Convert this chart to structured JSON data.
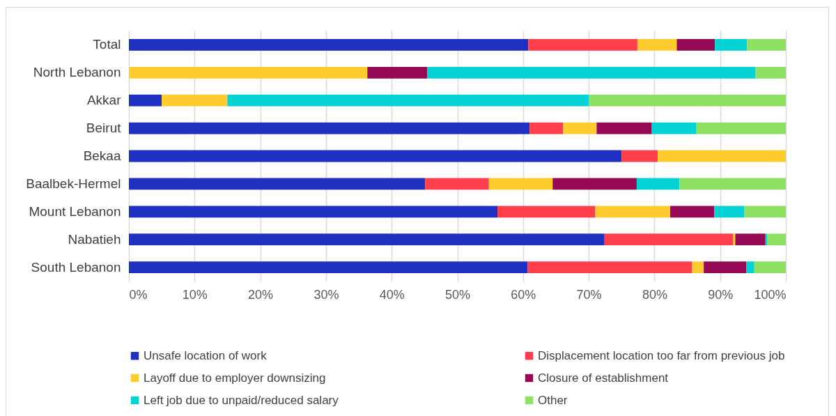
{
  "chart_data": {
    "type": "bar",
    "orientation": "horizontal",
    "stacked": true,
    "categories": [
      "Total",
      "North Lebanon",
      "Akkar",
      "Beirut",
      "Bekaa",
      "Baalbek-Hermel",
      "Mount Lebanon",
      "Nabatieh",
      "South Lebanon"
    ],
    "series": [
      {
        "name": "Unsafe location of work",
        "color": "#1f2fbf",
        "values": [
          60.8,
          0,
          5,
          61.0,
          75,
          45.1,
          56.1,
          72.4,
          60.7
        ]
      },
      {
        "name": "Displacement location too far from previous job",
        "color": "#ff3e4d",
        "values": [
          16.6,
          0,
          0,
          5.1,
          5.5,
          9.7,
          14.9,
          19.6,
          25.0
        ]
      },
      {
        "name": "Layoff due to employer downsizing",
        "color": "#ffcc2f",
        "values": [
          6.0,
          36.3,
          10,
          5.1,
          19.5,
          9.7,
          11.4,
          0.3,
          1.8
        ]
      },
      {
        "name": "Closure of establishment",
        "color": "#960a55",
        "values": [
          5.8,
          9.1,
          0,
          8.4,
          0,
          12.8,
          6.7,
          4.6,
          6.5
        ]
      },
      {
        "name": "Left job due to unpaid/reduced salary",
        "color": "#05d3d3",
        "values": [
          4.9,
          50.0,
          55,
          6.8,
          0,
          6.5,
          4.6,
          0.3,
          1.2
        ]
      },
      {
        "name": "Other",
        "color": "#8fe164",
        "values": [
          5.9,
          4.6,
          30,
          13.6,
          0,
          16.2,
          6.3,
          2.8,
          4.8
        ]
      }
    ],
    "xlim": [
      0,
      100
    ],
    "xticks": [
      {
        "value": 0,
        "label": "0%"
      },
      {
        "value": 10,
        "label": "10%"
      },
      {
        "value": 20,
        "label": "20%"
      },
      {
        "value": 30,
        "label": "30%"
      },
      {
        "value": 40,
        "label": "40%"
      },
      {
        "value": 50,
        "label": "50%"
      },
      {
        "value": 60,
        "label": "60%"
      },
      {
        "value": 70,
        "label": "70%"
      },
      {
        "value": 80,
        "label": "80%"
      },
      {
        "value": 90,
        "label": "90%"
      },
      {
        "value": 100,
        "label": "100%"
      }
    ],
    "grid": "x",
    "legend": "bottom"
  }
}
